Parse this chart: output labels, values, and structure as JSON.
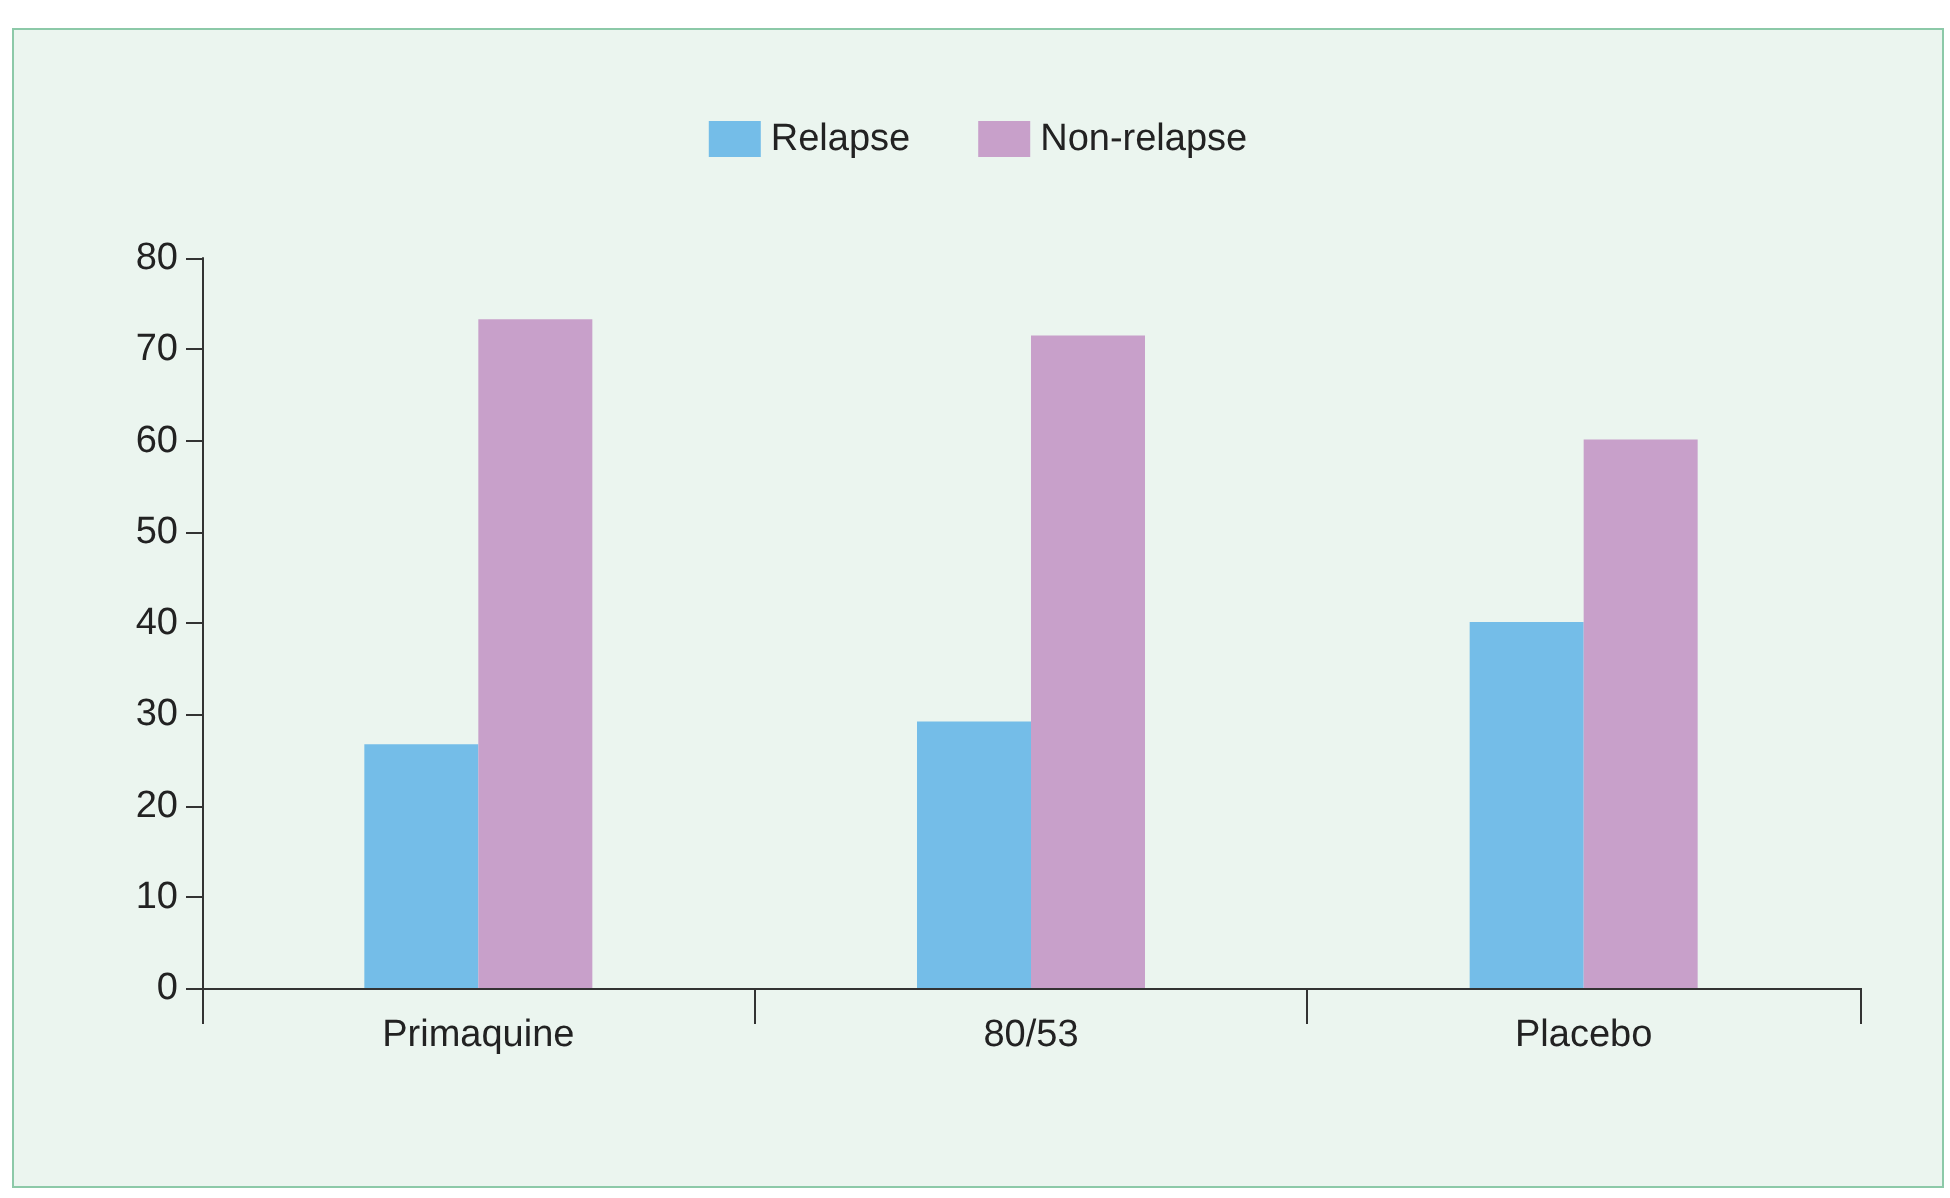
{
  "chart_data": {
    "type": "bar",
    "categories": [
      "Primaquine",
      "80/53",
      "Placebo"
    ],
    "series": [
      {
        "name": "Relapse",
        "color": "#74bde8",
        "values": [
          26.7,
          29.2,
          40.1
        ]
      },
      {
        "name": "Non-relapse",
        "color": "#c8a0ca",
        "values": [
          73.3,
          71.5,
          60.1
        ]
      }
    ],
    "ylim": [
      0,
      80
    ],
    "yticks": [
      0,
      10,
      20,
      30,
      40,
      50,
      60,
      70,
      80
    ],
    "grid": false,
    "legend": "top"
  }
}
